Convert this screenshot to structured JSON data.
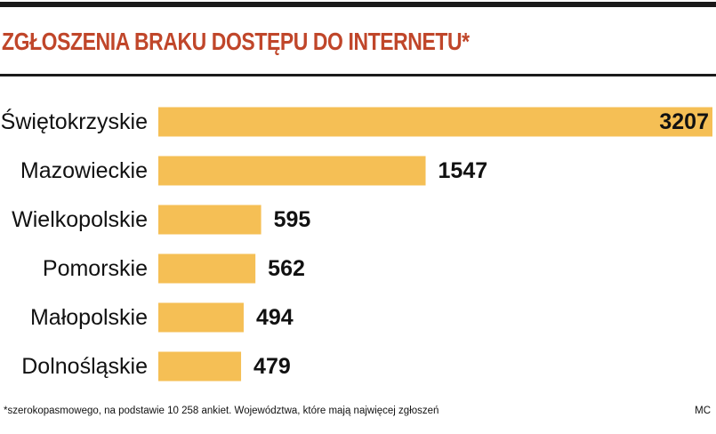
{
  "chart_data": {
    "type": "bar",
    "orientation": "horizontal",
    "title": "ZGŁOSZENIA BRAKU DOSTĘPU DO INTERNETU*",
    "categories": [
      "Świętokrzyskie",
      "Mazowieckie",
      "Wielkopolskie",
      "Pomorskie",
      "Małopolskie",
      "Dolnośląskie"
    ],
    "values": [
      3207,
      1547,
      595,
      562,
      494,
      479
    ],
    "value_labels": [
      "3207",
      "1547",
      "595",
      "562",
      "494",
      "479"
    ],
    "xlim": [
      0,
      3207
    ],
    "grid": false,
    "legend": "none",
    "bar_color": "#f5bf55",
    "title_color": "#c0462a"
  },
  "footnote": "*szerokopasmowego, na podstawie 10 258 ankiet. Województwa, które mają najwięcej zgłoszeń",
  "credit": "MC"
}
